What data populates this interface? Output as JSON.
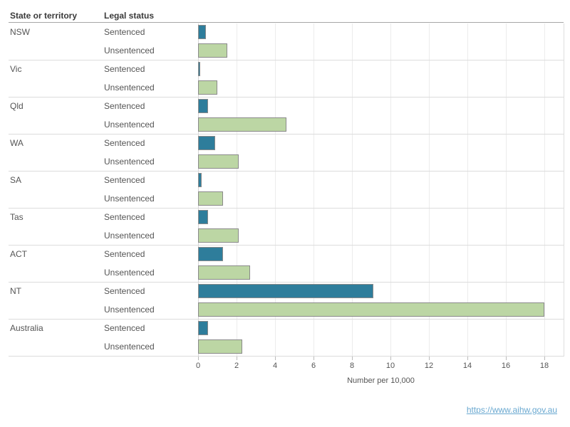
{
  "header": {
    "state_col": "State or territory",
    "status_col": "Legal status"
  },
  "link": {
    "text": "https://www.aihw.gov.au",
    "href": "https://www.aihw.gov.au"
  },
  "colors": {
    "sentenced": "#2E7D9B",
    "unsentenced": "#BCD6A4",
    "bar_border": "#8A8A8A",
    "gridline": "#ECECEC",
    "zero_line": "#D6D6D6",
    "link": "#69A8D0"
  },
  "chart_data": {
    "type": "bar",
    "orientation": "horizontal",
    "title": "",
    "xlabel": "Number per 10,000",
    "ylabel": "State or territory / Legal status",
    "xlim": [
      0,
      19
    ],
    "x_ticks": [
      0,
      2,
      4,
      6,
      8,
      10,
      12,
      14,
      16,
      18
    ],
    "grid": "vertical gridlines at each x tick",
    "legend_position": "per-row labels (no legend box)",
    "categories": [
      "NSW",
      "Vic",
      "Qld",
      "WA",
      "SA",
      "Tas",
      "ACT",
      "NT",
      "Australia"
    ],
    "series": [
      {
        "name": "Sentenced",
        "values": [
          0.4,
          0.1,
          0.5,
          0.9,
          0.2,
          0.5,
          1.3,
          9.1,
          0.5
        ]
      },
      {
        "name": "Unsentenced",
        "values": [
          1.5,
          1.0,
          4.6,
          2.1,
          1.3,
          2.1,
          2.7,
          18.0,
          2.3
        ]
      }
    ]
  }
}
